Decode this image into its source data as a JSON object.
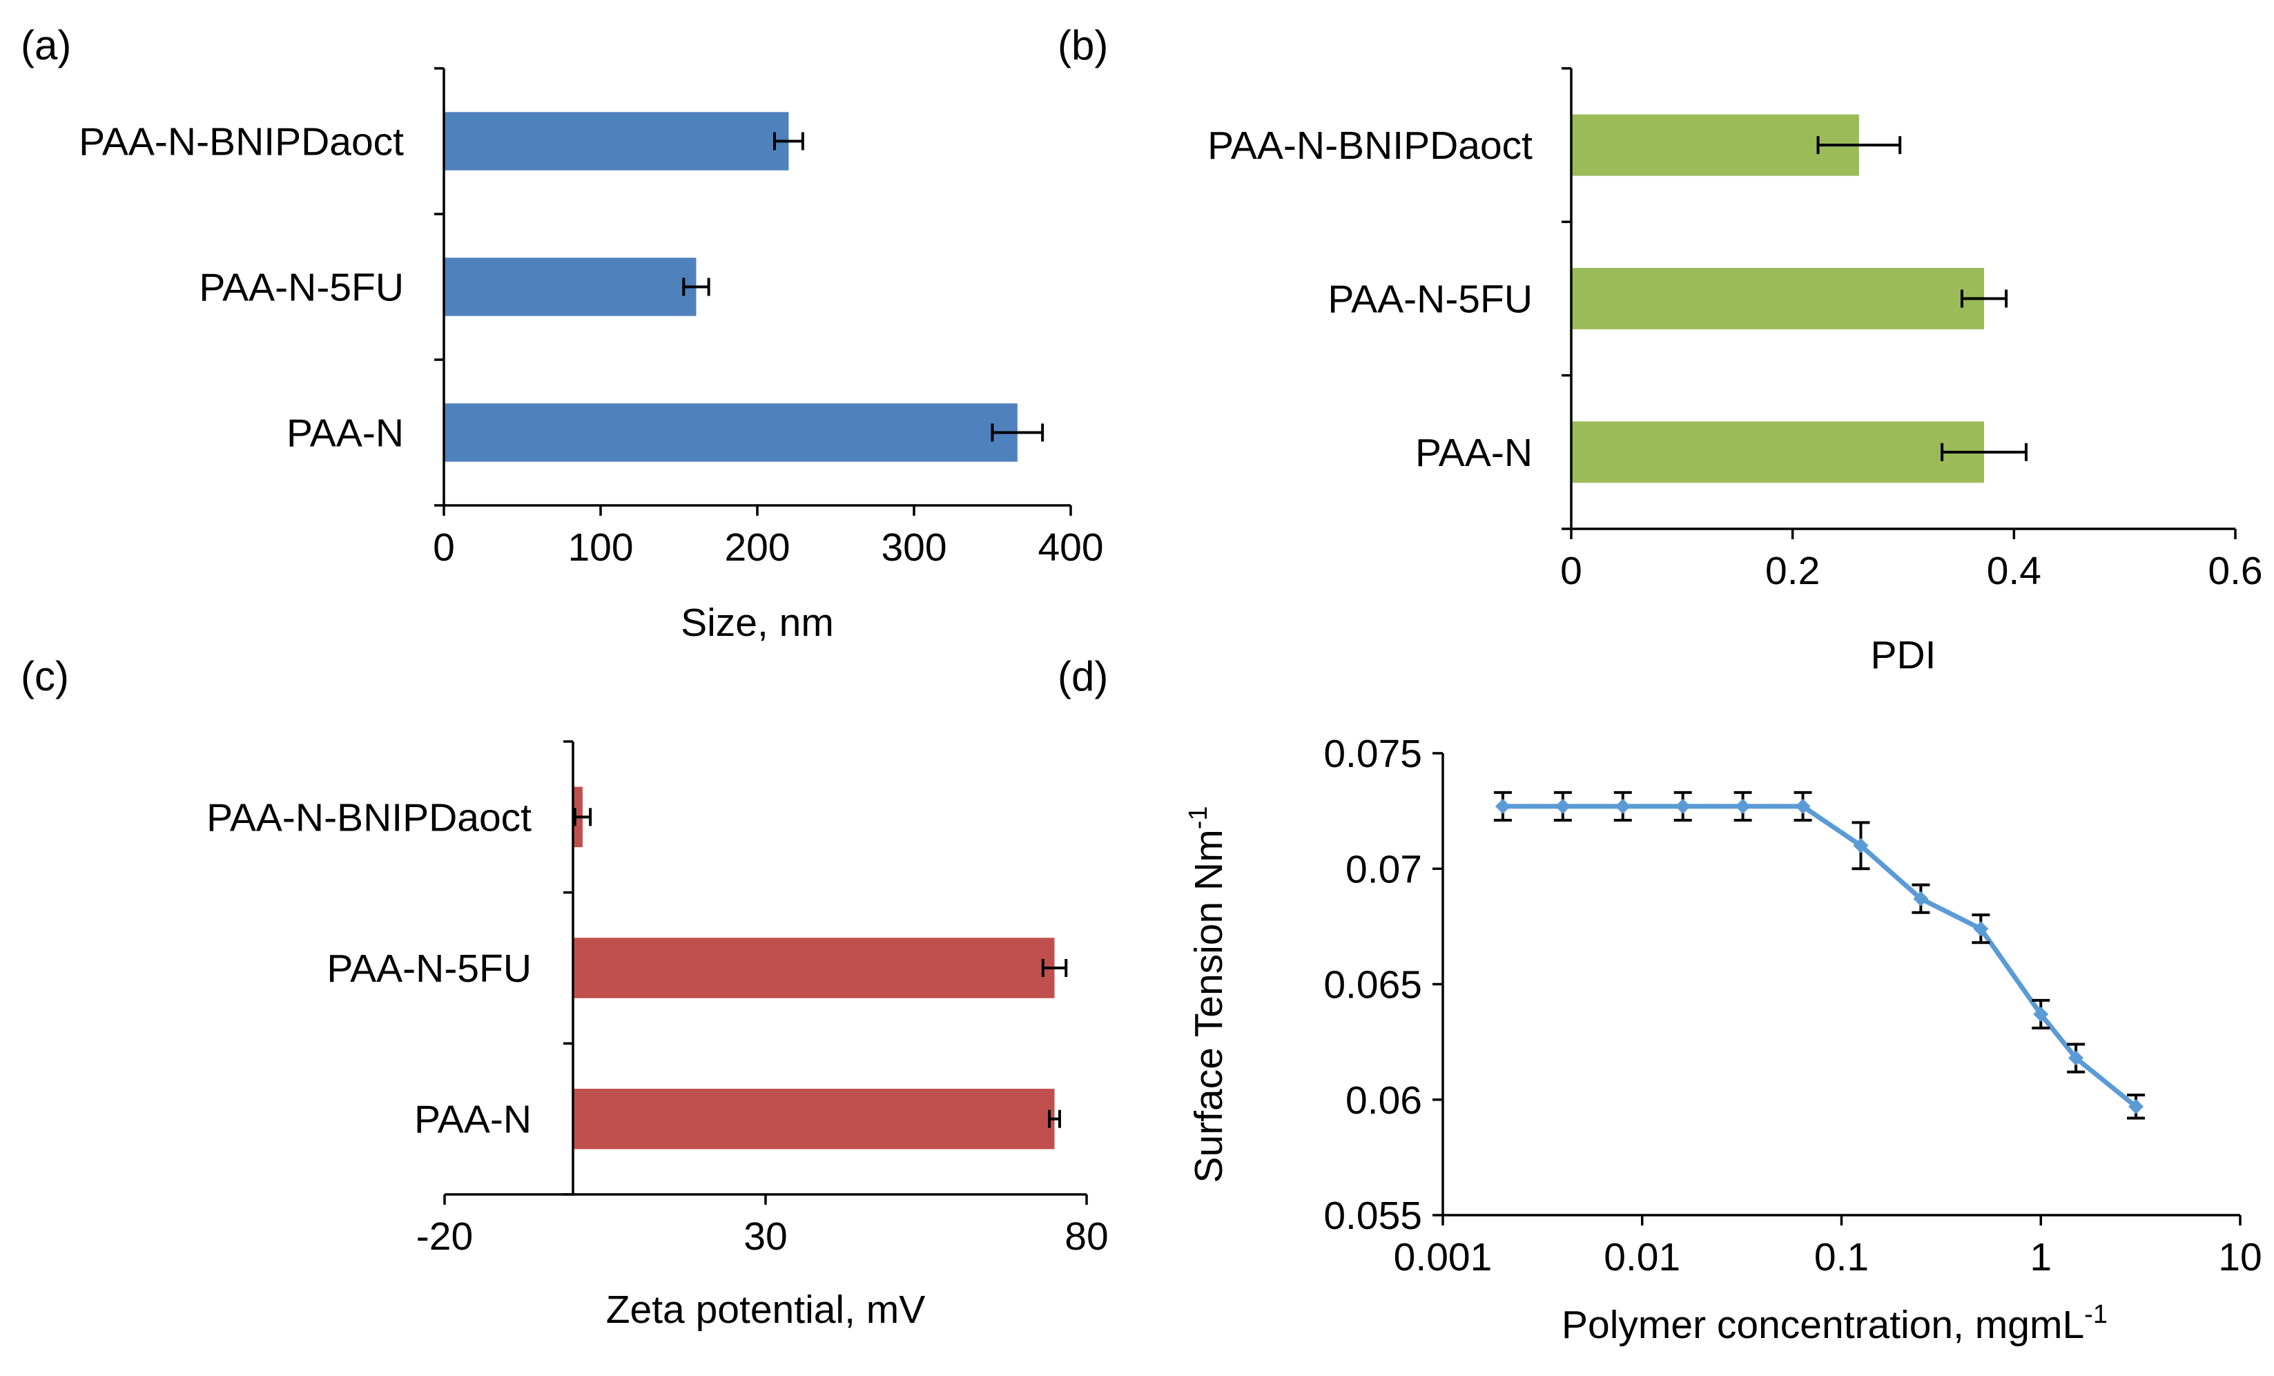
{
  "chart_data": [
    {
      "panel": "(a)",
      "type": "bar",
      "orientation": "horizontal",
      "categories": [
        "PAA-N-BNIPDaoct",
        "PAA-N-5FU",
        "PAA-N"
      ],
      "values": [
        220,
        161,
        366
      ],
      "errors": [
        9,
        8,
        16
      ],
      "xlabel": "Size, nm",
      "ylabel": "",
      "xlim": [
        0,
        400
      ],
      "ticks": [
        "0",
        "100",
        "200",
        "300",
        "400"
      ],
      "color": "#4f81bd",
      "grid": false
    },
    {
      "panel": "(b)",
      "type": "bar",
      "orientation": "horizontal",
      "categories": [
        "PAA-N-BNIPDaoct",
        "PAA-N-5FU",
        "PAA-N"
      ],
      "values": [
        0.26,
        0.373,
        0.373
      ],
      "errors": [
        0.037,
        0.02,
        0.038
      ],
      "xlabel": "PDI",
      "ylabel": "",
      "xlim": [
        0,
        0.6
      ],
      "ticks": [
        "0",
        "0.2",
        "0.4",
        "0.6"
      ],
      "color": "#9bbb59",
      "grid": false
    },
    {
      "panel": "(c)",
      "type": "bar",
      "orientation": "horizontal",
      "categories": [
        "PAA-N-BNIPDaoct",
        "PAA-N-5FU",
        "PAA-N"
      ],
      "values": [
        1.5,
        75,
        75
      ],
      "errors": [
        1.2,
        1.8,
        0.8
      ],
      "xlabel": "Zeta potential, mV",
      "ylabel": "",
      "xlim": [
        -20,
        80
      ],
      "ticks": [
        "-20",
        "30",
        "80"
      ],
      "color": "#c0504d",
      "grid": false
    },
    {
      "panel": "(d)",
      "type": "line",
      "x": [
        0.002,
        0.004,
        0.008,
        0.016,
        0.032,
        0.064,
        0.125,
        0.25,
        0.5,
        1,
        1.5,
        3
      ],
      "y": [
        0.0727,
        0.0727,
        0.0727,
        0.0727,
        0.0727,
        0.0727,
        0.071,
        0.0687,
        0.0674,
        0.0637,
        0.0618,
        0.0597
      ],
      "errors": [
        0.0006,
        0.0006,
        0.0006,
        0.0006,
        0.0006,
        0.0006,
        0.001,
        0.0006,
        0.0006,
        0.0006,
        0.0006,
        0.0005
      ],
      "xlabel": "Polymer concentration, mgmL",
      "xlabel_sup": "-1",
      "ylabel": "Surface Tension Nm",
      "ylabel_sup": "-1",
      "xscale": "log",
      "xlim": [
        0.001,
        10
      ],
      "ylim": [
        0.055,
        0.075
      ],
      "xticks": [
        "0.001",
        "0.01",
        "0.1",
        "1",
        "10"
      ],
      "yticks": [
        "0.055",
        "0.06",
        "0.065",
        "0.07",
        "0.075"
      ],
      "color": "#5b9bd5",
      "grid": false
    }
  ]
}
